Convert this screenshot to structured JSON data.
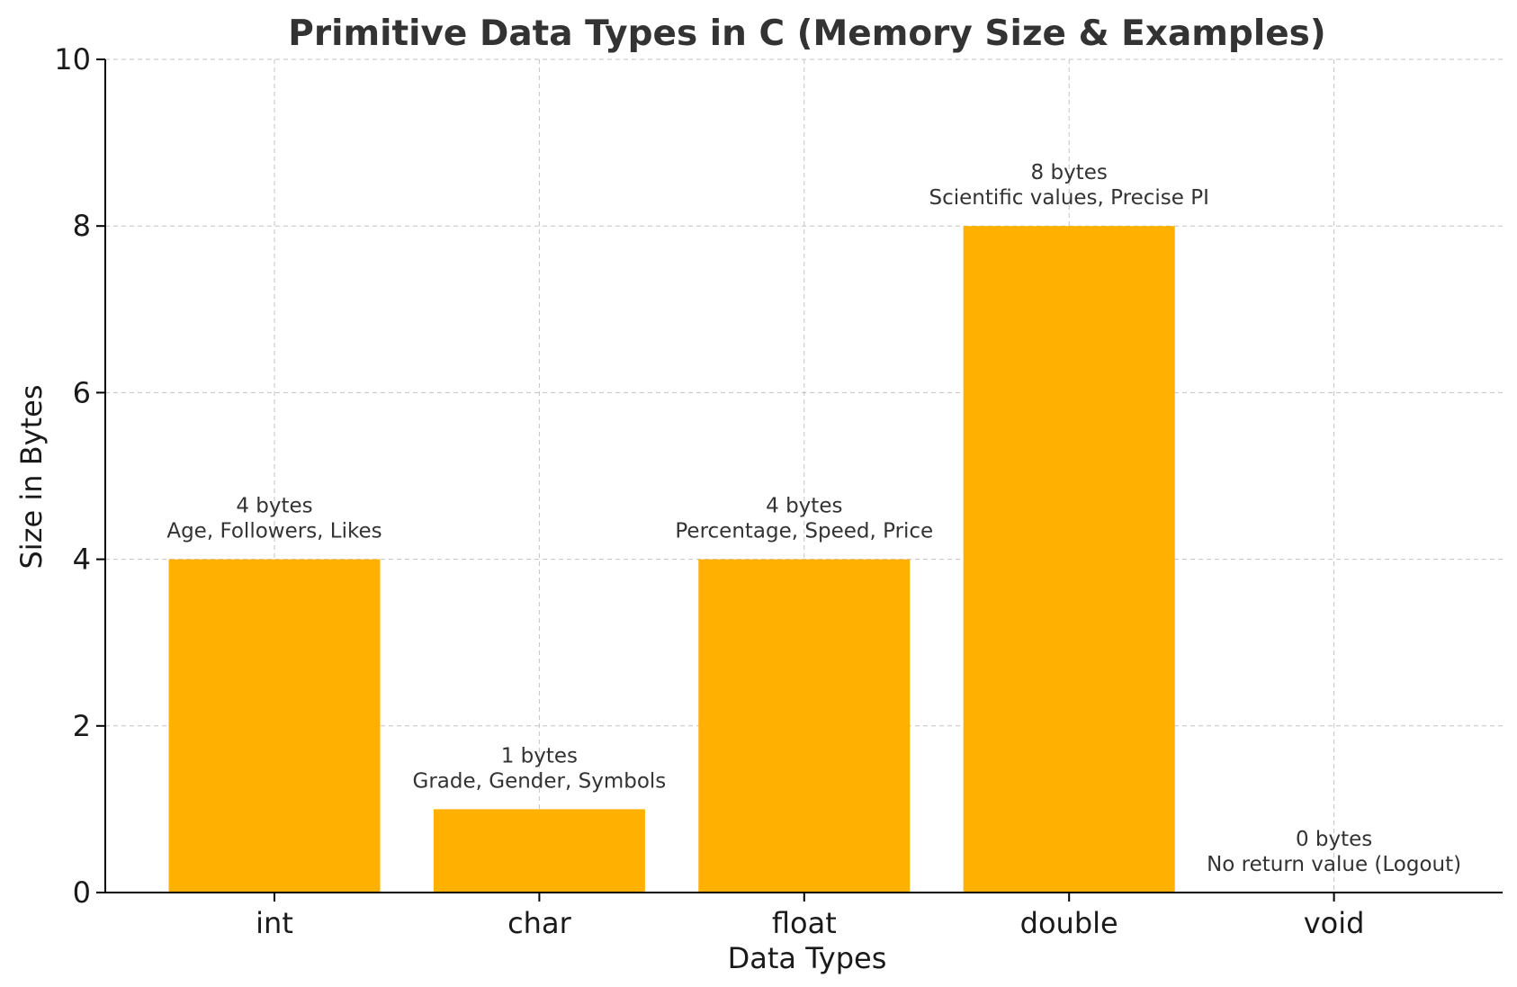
{
  "chart_data": {
    "type": "bar",
    "title": "Primitive Data Types in C (Memory Size & Examples)",
    "xlabel": "Data Types",
    "ylabel": "Size in Bytes",
    "categories": [
      "int",
      "char",
      "float",
      "double",
      "void"
    ],
    "values": [
      4,
      1,
      4,
      8,
      0
    ],
    "annotations": [
      {
        "size_label": "4 bytes",
        "examples": "Age, Followers, Likes"
      },
      {
        "size_label": "1 bytes",
        "examples": "Grade, Gender, Symbols"
      },
      {
        "size_label": "4 bytes",
        "examples": "Percentage, Speed, Price"
      },
      {
        "size_label": "8 bytes",
        "examples": "Scientific values, Precise PI"
      },
      {
        "size_label": "0 bytes",
        "examples": "No return value (Logout)"
      }
    ],
    "ylim": [
      0,
      10
    ],
    "yticks": [
      "0",
      "2",
      "4",
      "6",
      "8",
      "10"
    ],
    "grid": true,
    "bar_color": "#FFB000",
    "grid_color": "#b0b0b0"
  }
}
